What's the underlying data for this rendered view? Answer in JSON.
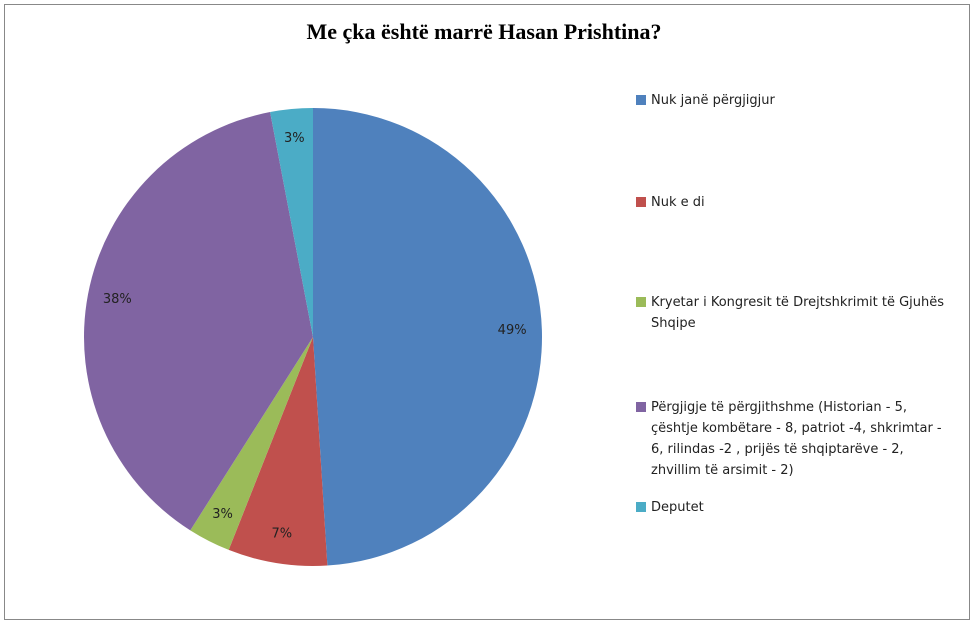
{
  "chart_data": {
    "type": "pie",
    "title": "Me çka është marrë Hasan Prishtina?",
    "categories": [
      "Nuk janë përgjigjur",
      "Nuk e di",
      "Kryetar i Kongresit të Drejtshkrimit të Gjuhës Shqipe",
      "Përgjigje të përgjithshme (Historian - 5, çështje kombëtare - 8, patriot -4, shkrimtar - 6, rilindas -2 , prijës të shqiptarëve - 2, zhvillim të arsimit - 2)",
      "Deputet"
    ],
    "values": [
      49,
      7,
      3,
      38,
      3
    ],
    "value_labels": [
      "49%",
      "7%",
      "3%",
      "38%",
      "3%"
    ],
    "colors": [
      "#4f81bd",
      "#c0504d",
      "#9bbb59",
      "#8064a2",
      "#4bacc6"
    ],
    "legend": "right"
  }
}
